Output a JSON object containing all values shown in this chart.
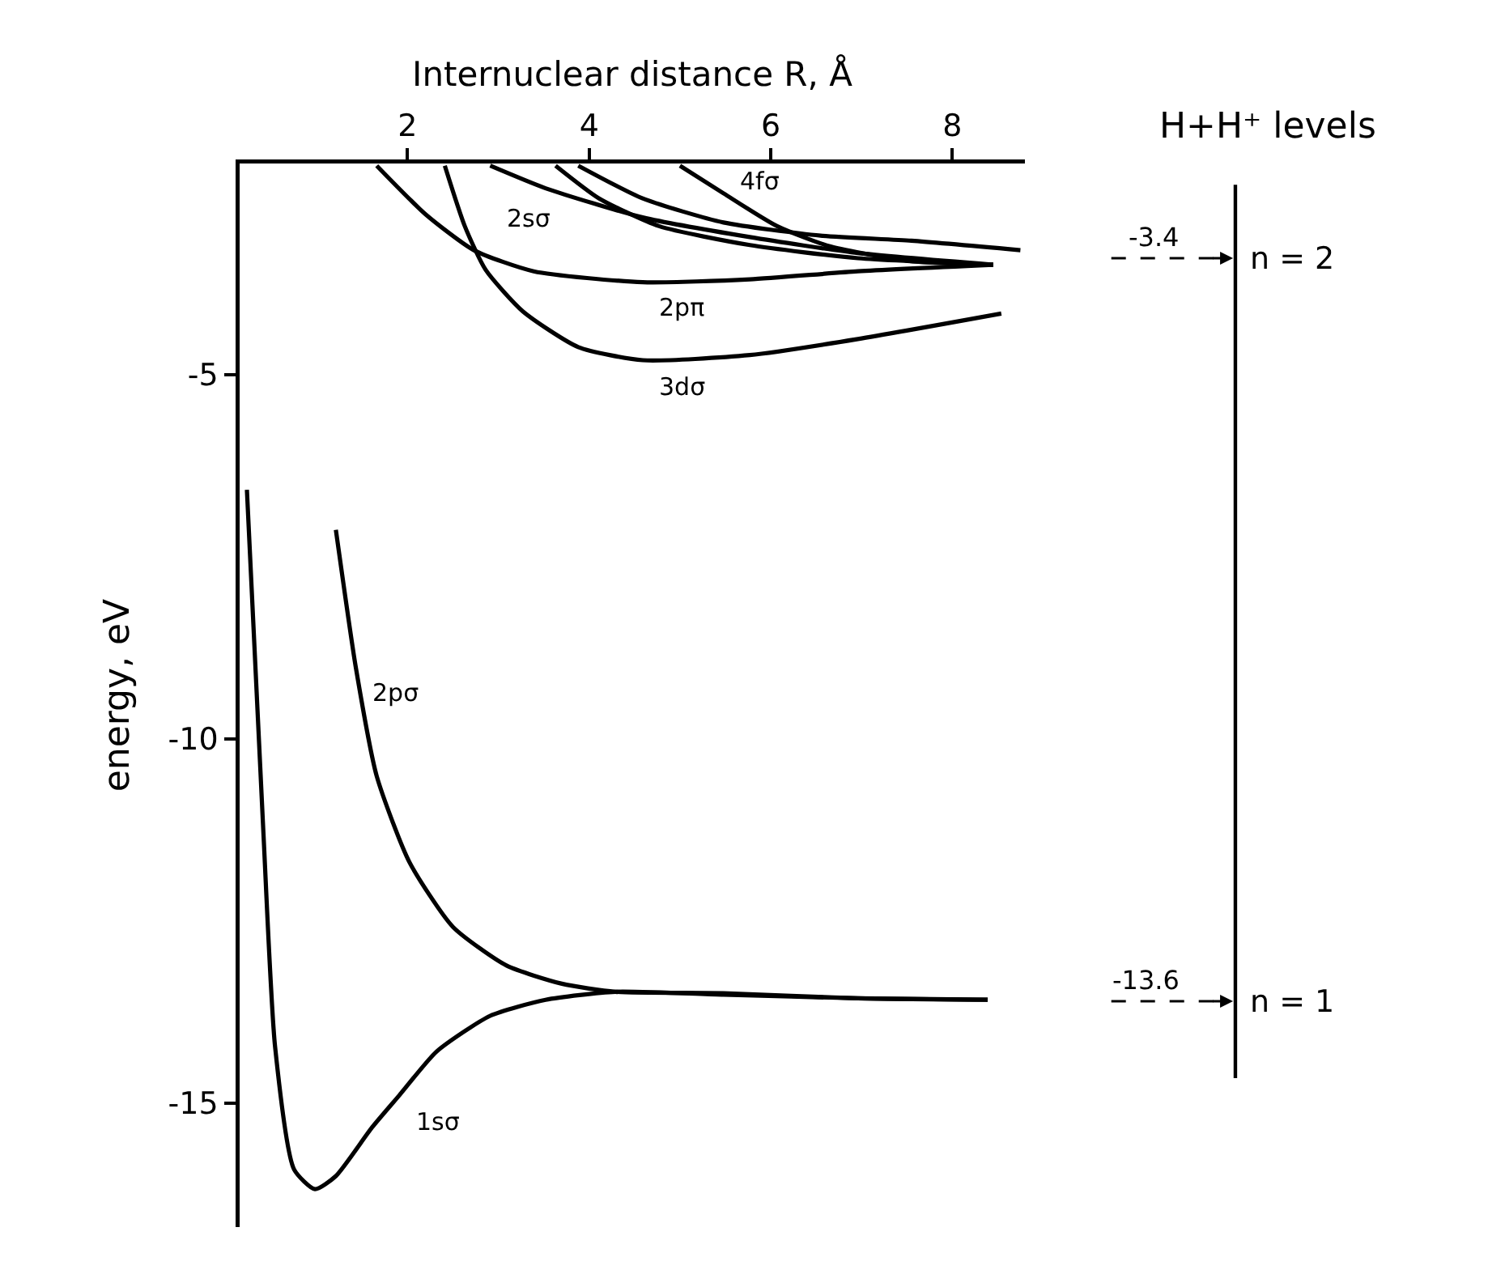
{
  "chart_data": {
    "type": "line",
    "xlabel": "Internuclear distance R, Å",
    "ylabel": "energy, eV",
    "xlim": [
      0.15,
      8.8
    ],
    "xticks": [
      2,
      4,
      6,
      8
    ],
    "ylim": [
      -16.7,
      -2.1
    ],
    "yticks": [
      -5,
      -10,
      -15
    ],
    "grid": false,
    "marker": "none",
    "line_style": "solid",
    "series": [
      {
        "color": "#000000",
        "x": [
          0.23,
          0.41,
          0.54,
          0.75,
          0.98,
          1.21,
          1.61,
          1.91,
          2.32,
          2.91,
          3.52,
          4.29,
          5.48,
          6.96,
          8.39
        ],
        "values": [
          -6.58,
          -11.24,
          -14.22,
          -15.91,
          -16.18,
          -16.0,
          -15.33,
          -14.89,
          -14.29,
          -13.8,
          -13.58,
          -13.47,
          -13.51,
          -13.56,
          -13.58
        ]
      },
      {
        "color": "#000000",
        "x": [
          1.21,
          1.43,
          1.66,
          2.02,
          2.5,
          3.09,
          3.7,
          4.29,
          5.48,
          6.96,
          8.39
        ],
        "values": [
          -7.13,
          -9.02,
          -10.51,
          -11.69,
          -12.58,
          -13.11,
          -13.36,
          -13.47,
          -13.49,
          -13.56,
          -13.58
        ]
      },
      {
        "color": "#000000",
        "x": [
          1.66,
          2.2,
          2.73,
          3.39,
          4.59,
          5.77,
          6.96,
          8.45
        ],
        "values": [
          -2.13,
          -2.8,
          -3.29,
          -3.58,
          -3.73,
          -3.69,
          -3.58,
          -3.49
        ]
      },
      {
        "color": "#000000",
        "x": [
          2.41,
          2.63,
          2.86,
          3.27,
          3.88,
          4.59,
          5.77,
          6.96,
          8.54
        ],
        "values": [
          -2.13,
          -2.96,
          -3.56,
          -4.13,
          -4.62,
          -4.8,
          -4.73,
          -4.51,
          -4.16
        ]
      },
      {
        "color": "#000000",
        "x": [
          2.91,
          3.52,
          4.59,
          5.77,
          6.96,
          8.45
        ],
        "values": [
          -2.13,
          -2.44,
          -2.84,
          -3.11,
          -3.33,
          -3.49
        ]
      },
      {
        "color": "#000000",
        "x": [
          3.63,
          4.11,
          4.77,
          5.77,
          6.96,
          8.45
        ],
        "values": [
          -2.13,
          -2.58,
          -2.96,
          -3.22,
          -3.4,
          -3.49
        ]
      },
      {
        "color": "#000000",
        "x": [
          3.88,
          4.59,
          5.48,
          6.55,
          7.55,
          8.75
        ],
        "values": [
          -2.13,
          -2.58,
          -2.91,
          -3.09,
          -3.16,
          -3.29
        ]
      },
      {
        "color": "#000000",
        "x": [
          5.0,
          5.48,
          6.07,
          6.66,
          7.55,
          8.45
        ],
        "values": [
          -2.13,
          -2.51,
          -2.96,
          -3.24,
          -3.44,
          -3.49
        ]
      }
    ],
    "ref_lines": [
      {
        "axis": "y",
        "value": -3.4,
        "label": "-3.4",
        "line_style": "dashed"
      },
      {
        "axis": "y",
        "value": -13.6,
        "label": "-13.6",
        "line_style": "dashed"
      }
    ],
    "annotations": [
      {
        "text": "1sσ",
        "x": 1.91,
        "y": -14.89
      },
      {
        "text": "2pσ",
        "x": 1.43,
        "y": -9.02
      },
      {
        "text": "2pπ",
        "x": 4.59,
        "y": -3.73
      },
      {
        "text": "3dσ",
        "x": 4.59,
        "y": -4.8
      },
      {
        "text": "2sσ",
        "x": 2.91,
        "y": -2.13
      },
      {
        "text": "4fσ",
        "x": 5.48,
        "y": -2.51
      },
      "H+H⁺ levels",
      "n = 2",
      "n = 1"
    ]
  }
}
